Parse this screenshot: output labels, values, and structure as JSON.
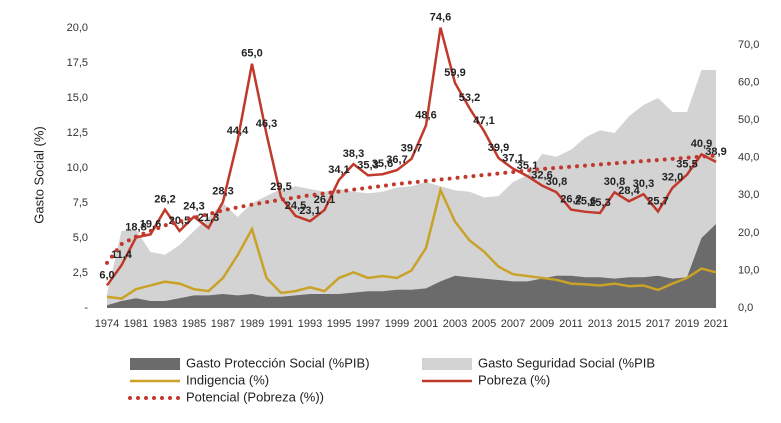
{
  "chart_data": {
    "type": "combo",
    "y_label": "Gasto Social  (%)",
    "categories": [
      "1974",
      null,
      "1981",
      null,
      "1983",
      null,
      "1985",
      null,
      "1987",
      null,
      "1989",
      null,
      "1991",
      null,
      "1993",
      null,
      "1995",
      null,
      "1997",
      null,
      "1999",
      null,
      "2001",
      null,
      "2003",
      null,
      "2005",
      null,
      "2007",
      null,
      "2009",
      null,
      "2011",
      null,
      "2013",
      null,
      "2015",
      null,
      "2017",
      null,
      "2019",
      null,
      "2021"
    ],
    "ylim": [
      0,
      20
    ],
    "yticks": [
      {
        "value": 0,
        "label": "-"
      },
      {
        "value": 2.5,
        "label": "2,5"
      },
      {
        "value": 5,
        "label": "5,0"
      },
      {
        "value": 7.5,
        "label": "7,5"
      },
      {
        "value": 10,
        "label": "10,0"
      },
      {
        "value": 12.5,
        "label": "12,5"
      },
      {
        "value": 15,
        "label": "15,0"
      },
      {
        "value": 17.5,
        "label": "17,5"
      },
      {
        "value": 20,
        "label": "20,0"
      }
    ],
    "y2lim": [
      0,
      70
    ],
    "y2ticks": [
      {
        "value": 0,
        "label": "0,0"
      },
      {
        "value": 10,
        "label": "10,0"
      },
      {
        "value": 20,
        "label": "20,0"
      },
      {
        "value": 30,
        "label": "30,0"
      },
      {
        "value": 40,
        "label": "40,0"
      },
      {
        "value": 50,
        "label": "50,0"
      },
      {
        "value": 60,
        "label": "60,0"
      },
      {
        "value": 70,
        "label": "70,0"
      }
    ],
    "series": [
      {
        "name": "Gasto Seguridad Social (%PIB",
        "type": "area",
        "color": "#d3d3d3",
        "values": [
          1,
          5.5,
          5.6,
          4,
          3.8,
          4.5,
          5.5,
          6.5,
          7.5,
          6.5,
          7.5,
          8,
          8.5,
          8.7,
          8.5,
          8.3,
          8.5,
          8.3,
          8.2,
          8.3,
          8.6,
          8.7,
          9,
          8.7,
          8.4,
          8.3,
          7.9,
          8,
          9,
          9.5,
          11,
          10.8,
          11.3,
          12.2,
          12.7,
          12.5,
          13.7,
          14.5,
          15,
          14,
          14,
          17,
          17
        ]
      },
      {
        "name": "Gasto Protección Social (%PIB)",
        "type": "area",
        "color": "#6b6b6b",
        "values": [
          0.2,
          0.5,
          0.7,
          0.5,
          0.5,
          0.7,
          0.9,
          0.9,
          1,
          0.9,
          1,
          0.8,
          0.8,
          0.9,
          1,
          1,
          1,
          1.1,
          1.2,
          1.2,
          1.3,
          1.3,
          1.4,
          1.9,
          2.3,
          2.2,
          2.1,
          2,
          1.9,
          1.9,
          2.1,
          2.3,
          2.3,
          2.2,
          2.2,
          2.1,
          2.2,
          2.2,
          2.3,
          2.1,
          2.2,
          5,
          6
        ]
      },
      {
        "name": "Indigencia (%)",
        "type": "line",
        "axis": "y2",
        "color": "#c9a227",
        "values": [
          3,
          2.5,
          5,
          6,
          7,
          6.5,
          5,
          4.5,
          8,
          14,
          21,
          8,
          4,
          4.5,
          5.5,
          4.5,
          8,
          9.5,
          8,
          8.5,
          8,
          10,
          16,
          31.4,
          23,
          18,
          15,
          11,
          9,
          8.5,
          8,
          7.5,
          6.5,
          6.3,
          6,
          6.5,
          5.8,
          6,
          4.8,
          6.5,
          8,
          10.5,
          9.5
        ]
      },
      {
        "name": "Pobreza (%)",
        "type": "line",
        "axis": "y2",
        "color": "#c0392b",
        "values": [
          6,
          11.4,
          18.8,
          19.6,
          26.2,
          20.5,
          24.3,
          21.3,
          28.3,
          44.4,
          65,
          46.3,
          29.5,
          24.5,
          23.1,
          26.1,
          34.1,
          38.3,
          35.3,
          35.6,
          36.7,
          39.7,
          48.6,
          74.6,
          59.9,
          53.2,
          47.1,
          39.9,
          37.1,
          35.1,
          32.6,
          30.8,
          26.2,
          25.6,
          25.3,
          30.8,
          28.4,
          30.3,
          25.7,
          32,
          35.5,
          40.9,
          38.9
        ],
        "value_labels": [
          "6,0",
          "11,4",
          "18,8",
          "19,6",
          "26,2",
          "20,5",
          "24,3",
          "21,3",
          "28,3",
          "44,4",
          "65,0",
          "46,3",
          "29,5",
          "24,5",
          "23,1",
          "26,1",
          "34,1",
          "38,3",
          "35,3",
          "35,6",
          "36,7",
          "39,7",
          "48,6",
          "74,6",
          "59,9",
          "53,2",
          "47,1",
          "39,9",
          "37,1",
          "35,1",
          "32,6",
          "30,8",
          "26,2",
          "25,6",
          "25,3",
          "30,8",
          "28,4",
          "30,3",
          "25,7",
          "32,0",
          "35,5",
          "40,9",
          "38,9"
        ]
      },
      {
        "name": "Potencial (Pobreza (%))",
        "type": "line",
        "axis": "y2",
        "color": "#c0392b",
        "line_style": "dotted",
        "values": [
          12,
          17,
          19,
          20.5,
          22,
          23,
          24,
          25,
          26,
          26.8,
          27.5,
          28.2,
          28.8,
          29.4,
          30,
          30.5,
          31,
          31.5,
          32,
          32.5,
          33,
          33.4,
          33.8,
          34.2,
          34.6,
          35,
          35.4,
          35.8,
          36.2,
          36.6,
          37,
          37.3,
          37.6,
          37.9,
          38.2,
          38.5,
          38.8,
          39.1,
          39.4,
          39.7,
          40,
          40.3,
          40.6
        ]
      }
    ],
    "legend_order": [
      1,
      0,
      2,
      3,
      4
    ]
  }
}
